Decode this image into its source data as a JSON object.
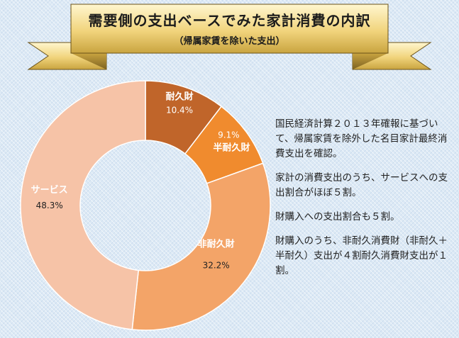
{
  "title": {
    "main": "需要側の支出ベースでみた家計消費の内訳",
    "sub": "（帰属家賃を除いた支出）"
  },
  "chart_data": {
    "type": "pie",
    "variant": "donut",
    "categories": [
      "耐久財",
      "半耐久財",
      "非耐久財",
      "サービス"
    ],
    "values": [
      10.4,
      9.1,
      32.2,
      48.3
    ],
    "value_labels": [
      "10.4%",
      "9.1%",
      "32.2%",
      "48.3%"
    ],
    "unit": "%",
    "colors": [
      "#c0652a",
      "#f08b2e",
      "#f3a468",
      "#f6c3a7"
    ]
  },
  "notes": [
    "国民経済計算２０１３年確報に基づいて、帰属家賃を除外した名目家計最終消費支出を確認。",
    "家計の消費支出のうち、サービスへの支出割合がほぼ５割。",
    "財購入への支出割合も５割。",
    "財購入のうち、非耐久消費財（非耐久＋半耐久）支出が４割耐久消費財支出が１割。"
  ]
}
